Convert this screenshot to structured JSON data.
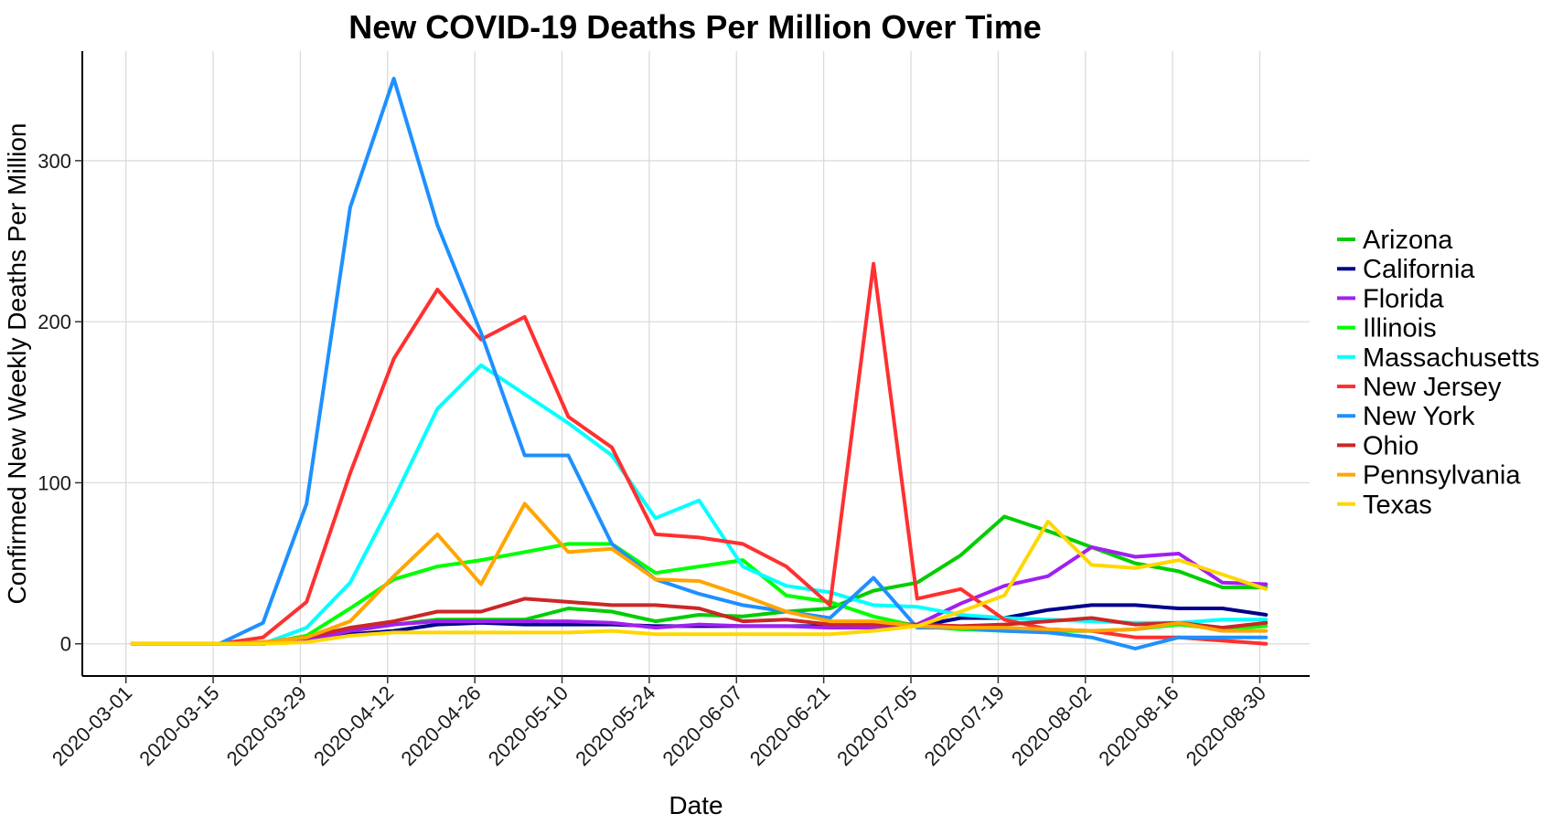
{
  "chart_data": {
    "type": "line",
    "title": "New COVID-19 Deaths Per Million Over Time",
    "xlabel": "Date",
    "ylabel": "Confirmed New Weekly Deaths Per Million",
    "grid": true,
    "legend_position": "right",
    "x_tick_labels": [
      "2020-03-01",
      "2020-03-15",
      "2020-03-29",
      "2020-04-12",
      "2020-04-26",
      "2020-05-10",
      "2020-05-24",
      "2020-06-07",
      "2020-06-21",
      "2020-07-05",
      "2020-07-19",
      "2020-08-02",
      "2020-08-16",
      "2020-08-30"
    ],
    "y_ticks": [
      0,
      100,
      200,
      300
    ],
    "y_tick_labels": [
      "0",
      "100",
      "200",
      "300"
    ],
    "ylim": [
      -20,
      368
    ],
    "x_day_range": [
      -7,
      190
    ],
    "x": [
      1,
      8,
      15,
      22,
      29,
      36,
      43,
      50,
      57,
      64,
      71,
      78,
      85,
      92,
      99,
      106,
      113,
      120,
      127,
      134,
      141,
      148,
      155,
      162,
      169,
      176,
      183
    ],
    "series": [
      {
        "name": "Arizona",
        "color": "#00cd00",
        "values": [
          0,
          0,
          0,
          0,
          3,
          8,
          12,
          15,
          15,
          15,
          22,
          20,
          14,
          18,
          17,
          20,
          22,
          33,
          38,
          55,
          79,
          70,
          60,
          50,
          45,
          35,
          35
        ]
      },
      {
        "name": "California",
        "color": "#00008b",
        "values": [
          0,
          0,
          0,
          0,
          2,
          6,
          8,
          12,
          13,
          12,
          12,
          12,
          11,
          11,
          11,
          11,
          11,
          11,
          11,
          16,
          16,
          21,
          24,
          24,
          22,
          22,
          18
        ]
      },
      {
        "name": "Florida",
        "color": "#a020f0",
        "values": [
          0,
          0,
          0,
          0,
          2,
          8,
          12,
          14,
          14,
          14,
          14,
          13,
          10,
          12,
          11,
          11,
          10,
          10,
          12,
          25,
          36,
          42,
          60,
          54,
          56,
          38,
          37
        ]
      },
      {
        "name": "Illinois",
        "color": "#00ff00",
        "values": [
          0,
          0,
          0,
          0,
          5,
          22,
          40,
          48,
          52,
          57,
          62,
          62,
          44,
          48,
          52,
          30,
          26,
          17,
          11,
          9,
          8,
          8,
          8,
          9,
          12,
          9,
          11
        ]
      },
      {
        "name": "Massachusetts",
        "color": "#00ffff",
        "values": [
          0,
          0,
          0,
          0,
          10,
          38,
          90,
          146,
          173,
          155,
          137,
          117,
          78,
          89,
          48,
          36,
          32,
          24,
          23,
          18,
          16,
          15,
          14,
          13,
          13,
          15,
          15
        ]
      },
      {
        "name": "New Jersey",
        "color": "#ff3030",
        "values": [
          0,
          0,
          0,
          4,
          26,
          106,
          177,
          220,
          189,
          203,
          141,
          122,
          68,
          66,
          62,
          48,
          24,
          236,
          28,
          34,
          15,
          9,
          8,
          4,
          4,
          2,
          0
        ]
      },
      {
        "name": "New York",
        "color": "#1e90ff",
        "values": [
          0,
          0,
          0,
          13,
          87,
          271,
          351,
          260,
          193,
          117,
          117,
          62,
          40,
          31,
          24,
          20,
          16,
          41,
          10,
          10,
          8,
          7,
          4,
          -3,
          4,
          4,
          4
        ]
      },
      {
        "name": "Ohio",
        "color": "#cd2626",
        "values": [
          0,
          0,
          0,
          1,
          4,
          10,
          14,
          20,
          20,
          28,
          26,
          24,
          24,
          22,
          14,
          15,
          12,
          12,
          12,
          11,
          12,
          14,
          16,
          12,
          13,
          10,
          13
        ]
      },
      {
        "name": "Pennsylvania",
        "color": "#ffa500",
        "values": [
          0,
          0,
          0,
          1,
          4,
          14,
          42,
          68,
          37,
          87,
          57,
          59,
          40,
          39,
          30,
          20,
          14,
          14,
          11,
          10,
          10,
          9,
          8,
          9,
          13,
          8,
          8
        ]
      },
      {
        "name": "Texas",
        "color": "#ffd700",
        "values": [
          0,
          0,
          0,
          0,
          1,
          5,
          7,
          7,
          7,
          7,
          7,
          8,
          6,
          6,
          6,
          6,
          6,
          8,
          11,
          20,
          30,
          76,
          49,
          47,
          52,
          43,
          34
        ]
      }
    ]
  }
}
